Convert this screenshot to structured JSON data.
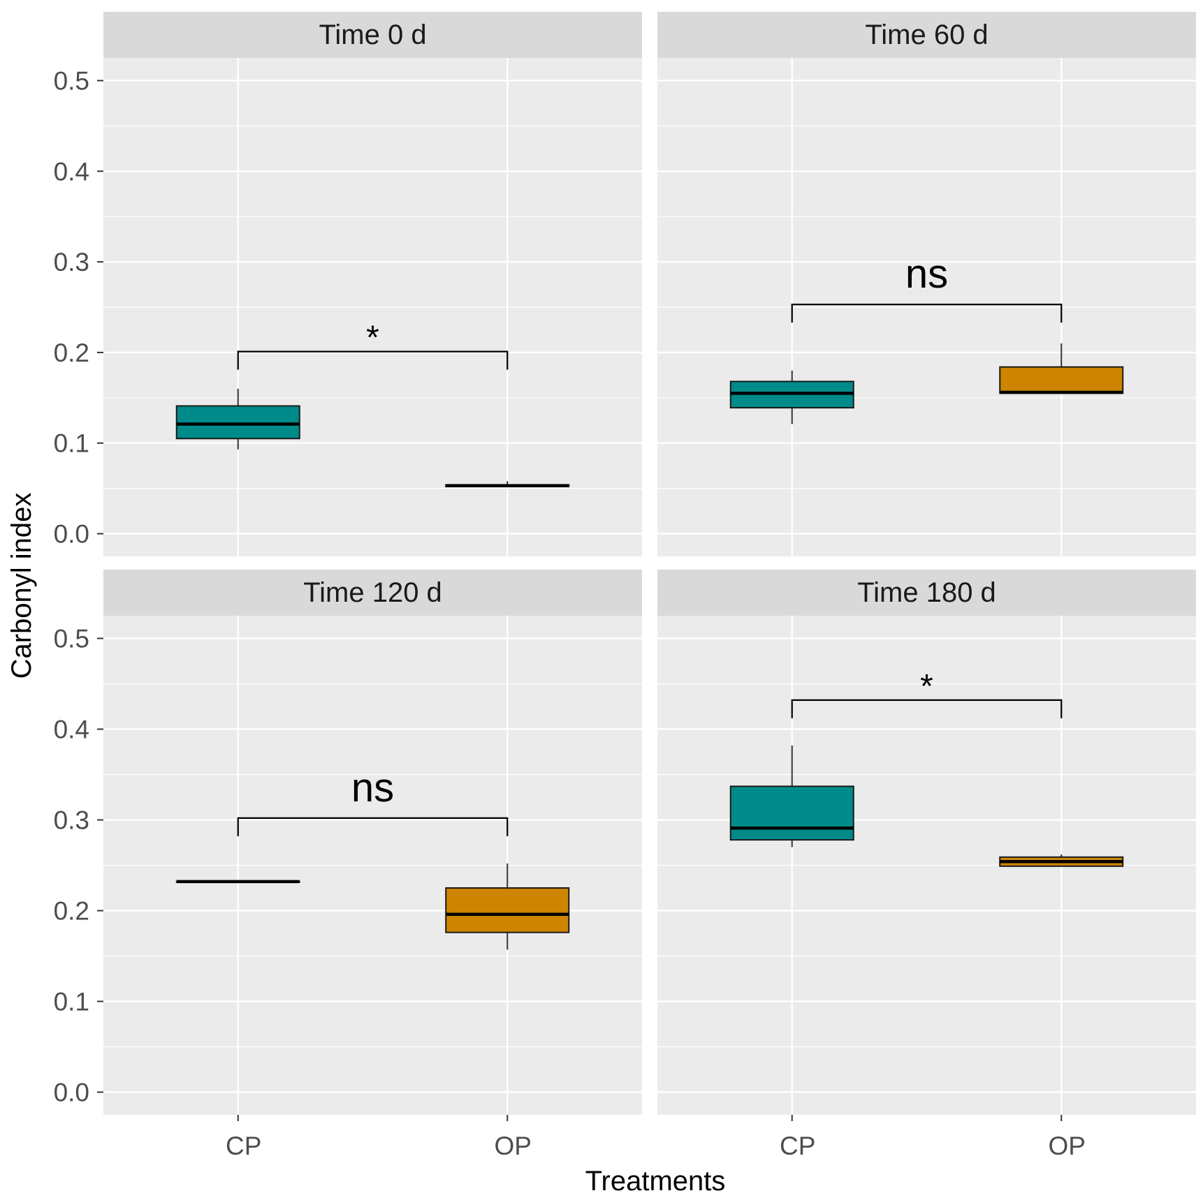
{
  "chart_data": {
    "type": "boxplot",
    "xlabel": "Treatments",
    "ylabel": "Carbonyl index",
    "ylim": [
      -0.025,
      0.525
    ],
    "yticks": [
      "0.0",
      "0.1",
      "0.2",
      "0.3",
      "0.4",
      "0.5"
    ],
    "ytick_values": [
      0.0,
      0.1,
      0.2,
      0.3,
      0.4,
      0.5
    ],
    "categories": [
      "CP",
      "OP"
    ],
    "grid": true,
    "colors": {
      "CP": "#008b8b",
      "OP": "#cd8500"
    },
    "panels": [
      {
        "title": "Time 0 d",
        "boxes": [
          {
            "group": "CP",
            "min": 0.093,
            "q1": 0.105,
            "median": 0.121,
            "q3": 0.141,
            "max": 0.16
          },
          {
            "group": "OP",
            "min": 0.052,
            "q1": 0.052,
            "median": 0.053,
            "q3": 0.054,
            "max": 0.058
          }
        ],
        "annotation": {
          "label": "*",
          "y": 0.201,
          "tick_bottom": 0.181
        }
      },
      {
        "title": "Time 60 d",
        "boxes": [
          {
            "group": "CP",
            "min": 0.121,
            "q1": 0.139,
            "median": 0.155,
            "q3": 0.168,
            "max": 0.18
          },
          {
            "group": "OP",
            "min": 0.155,
            "q1": 0.155,
            "median": 0.156,
            "q3": 0.184,
            "max": 0.21
          }
        ],
        "annotation": {
          "label": "ns",
          "y": 0.253,
          "tick_bottom": 0.233
        }
      },
      {
        "title": "Time 120 d",
        "boxes": [
          {
            "group": "CP",
            "min": 0.232,
            "q1": 0.232,
            "median": 0.232,
            "q3": 0.232,
            "max": 0.232
          },
          {
            "group": "OP",
            "min": 0.157,
            "q1": 0.176,
            "median": 0.196,
            "q3": 0.225,
            "max": 0.252
          }
        ],
        "annotation": {
          "label": "ns",
          "y": 0.302,
          "tick_bottom": 0.282
        }
      },
      {
        "title": "Time 180 d",
        "boxes": [
          {
            "group": "CP",
            "min": 0.27,
            "q1": 0.278,
            "median": 0.291,
            "q3": 0.337,
            "max": 0.382
          },
          {
            "group": "OP",
            "min": 0.249,
            "q1": 0.249,
            "median": 0.254,
            "q3": 0.259,
            "max": 0.262
          }
        ],
        "annotation": {
          "label": "*",
          "y": 0.432,
          "tick_bottom": 0.412
        }
      }
    ]
  }
}
